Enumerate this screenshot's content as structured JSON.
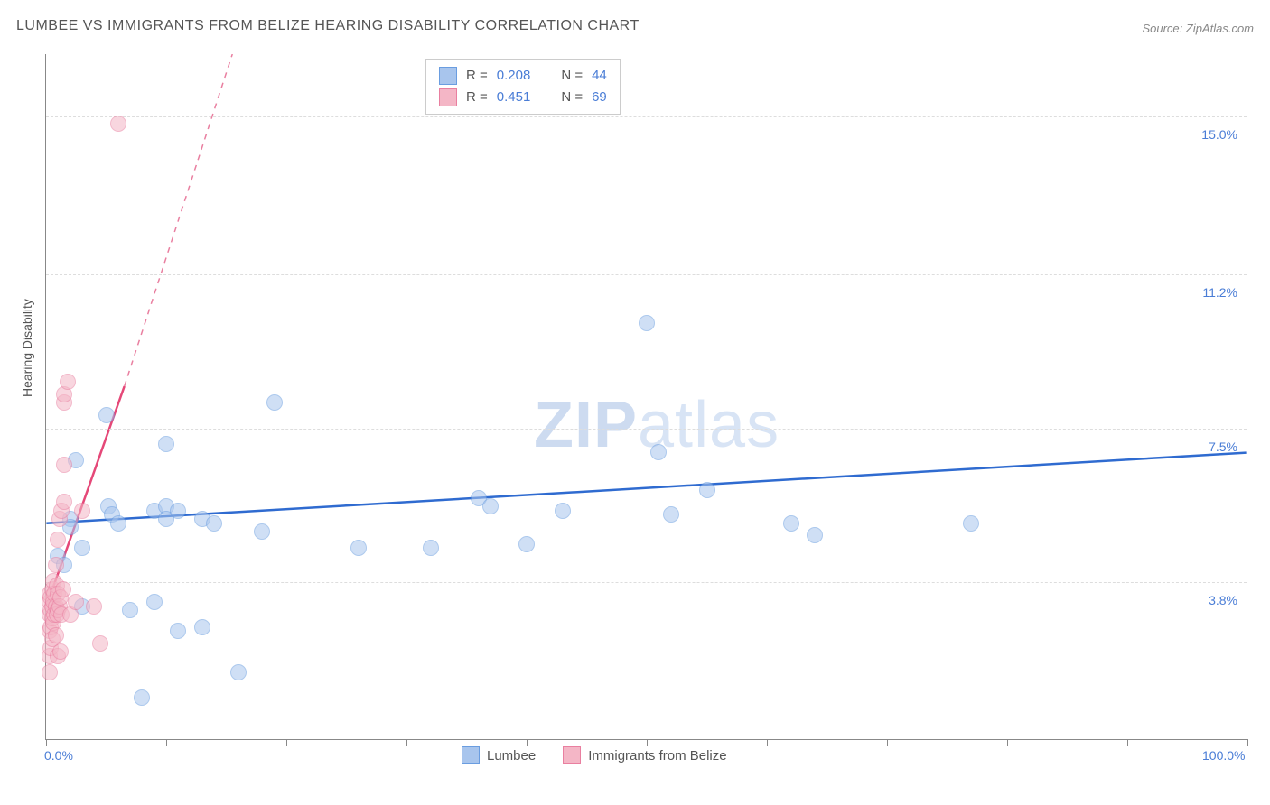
{
  "title": "LUMBEE VS IMMIGRANTS FROM BELIZE HEARING DISABILITY CORRELATION CHART",
  "source": "Source: ZipAtlas.com",
  "ylabel": "Hearing Disability",
  "watermark": {
    "bold": "ZIP",
    "light": "atlas"
  },
  "chart": {
    "type": "scatter",
    "xlim": [
      0,
      100
    ],
    "ylim": [
      0,
      16.5
    ],
    "x_ticks": [
      0,
      10,
      20,
      30,
      40,
      50,
      60,
      70,
      80,
      90,
      100
    ],
    "x_tick_labels": {
      "0": "0.0%",
      "100": "100.0%"
    },
    "y_gridlines": [
      3.8,
      7.5,
      11.2,
      15.0
    ],
    "y_tick_labels": [
      "3.8%",
      "7.5%",
      "11.2%",
      "15.0%"
    ],
    "background_color": "#ffffff",
    "grid_color": "#dddddd",
    "axis_color": "#888888"
  },
  "series": [
    {
      "key": "lumbee",
      "label": "Lumbee",
      "fill": "#a8c5ed",
      "fill_opacity": 0.55,
      "stroke": "#6a9de0",
      "point_radius": 9,
      "R": "0.208",
      "N": "44",
      "trend": {
        "x1": 0,
        "y1": 5.2,
        "x2": 100,
        "y2": 6.9,
        "color": "#2f6bd0",
        "width": 2.5,
        "dash": "none"
      },
      "points": [
        [
          1,
          4.4
        ],
        [
          1.5,
          4.2
        ],
        [
          2,
          5.3
        ],
        [
          2,
          5.1
        ],
        [
          2.5,
          6.7
        ],
        [
          3,
          4.6
        ],
        [
          3,
          3.2
        ],
        [
          5,
          7.8
        ],
        [
          5.2,
          5.6
        ],
        [
          5.5,
          5.4
        ],
        [
          6,
          5.2
        ],
        [
          7,
          3.1
        ],
        [
          8,
          1.0
        ],
        [
          9,
          5.5
        ],
        [
          9,
          3.3
        ],
        [
          10,
          7.1
        ],
        [
          10,
          5.6
        ],
        [
          10,
          5.3
        ],
        [
          11,
          5.5
        ],
        [
          11,
          2.6
        ],
        [
          13,
          2.7
        ],
        [
          13,
          5.3
        ],
        [
          14,
          5.2
        ],
        [
          16,
          1.6
        ],
        [
          18,
          5.0
        ],
        [
          19,
          8.1
        ],
        [
          26,
          4.6
        ],
        [
          32,
          4.6
        ],
        [
          36,
          5.8
        ],
        [
          37,
          5.6
        ],
        [
          40,
          4.7
        ],
        [
          43,
          5.5
        ],
        [
          50,
          10.0
        ],
        [
          51,
          6.9
        ],
        [
          52,
          5.4
        ],
        [
          55,
          6.0
        ],
        [
          62,
          5.2
        ],
        [
          64,
          4.9
        ],
        [
          77,
          5.2
        ]
      ]
    },
    {
      "key": "belize",
      "label": "Immigrants from Belize",
      "fill": "#f4b6c6",
      "fill_opacity": 0.55,
      "stroke": "#e97fa0",
      "point_radius": 9,
      "R": "0.451",
      "N": "69",
      "trend_solid": {
        "x1": 0,
        "y1": 3.2,
        "x2": 6.5,
        "y2": 8.5,
        "color": "#e54878",
        "width": 2.5
      },
      "trend_dash": {
        "x1": 6.5,
        "y1": 8.5,
        "x2": 15.5,
        "y2": 16.5,
        "color": "#e97fa0",
        "width": 1.5
      },
      "points": [
        [
          0.3,
          1.6
        ],
        [
          0.3,
          2.0
        ],
        [
          0.3,
          2.6
        ],
        [
          0.3,
          3.0
        ],
        [
          0.3,
          3.3
        ],
        [
          0.3,
          3.5
        ],
        [
          0.4,
          2.2
        ],
        [
          0.4,
          2.7
        ],
        [
          0.4,
          3.1
        ],
        [
          0.4,
          3.4
        ],
        [
          0.5,
          2.4
        ],
        [
          0.5,
          2.9
        ],
        [
          0.5,
          3.2
        ],
        [
          0.5,
          3.6
        ],
        [
          0.6,
          2.8
        ],
        [
          0.6,
          3.3
        ],
        [
          0.6,
          3.8
        ],
        [
          0.7,
          3.0
        ],
        [
          0.7,
          3.5
        ],
        [
          0.8,
          2.5
        ],
        [
          0.8,
          3.2
        ],
        [
          0.8,
          4.2
        ],
        [
          0.9,
          3.0
        ],
        [
          0.9,
          3.7
        ],
        [
          1.0,
          2.0
        ],
        [
          1.0,
          3.1
        ],
        [
          1.0,
          3.5
        ],
        [
          1.0,
          4.8
        ],
        [
          1.1,
          3.2
        ],
        [
          1.1,
          5.3
        ],
        [
          1.2,
          2.1
        ],
        [
          1.2,
          3.4
        ],
        [
          1.3,
          3.0
        ],
        [
          1.3,
          5.5
        ],
        [
          1.4,
          3.6
        ],
        [
          1.5,
          5.7
        ],
        [
          1.5,
          6.6
        ],
        [
          1.5,
          8.1
        ],
        [
          1.5,
          8.3
        ],
        [
          1.8,
          8.6
        ],
        [
          2.0,
          3.0
        ],
        [
          2.5,
          3.3
        ],
        [
          3.0,
          5.5
        ],
        [
          4.0,
          3.2
        ],
        [
          4.5,
          2.3
        ],
        [
          6.0,
          14.8
        ]
      ]
    }
  ],
  "legend_top": {
    "rows": [
      {
        "swatch_fill": "#a8c5ed",
        "swatch_border": "#6a9de0",
        "R_label": "R =",
        "R": "0.208",
        "N_label": "N =",
        "N": "44"
      },
      {
        "swatch_fill": "#f4b6c6",
        "swatch_border": "#e97fa0",
        "R_label": "R =",
        "R": "0.451",
        "N_label": "N =",
        "N": "69"
      }
    ]
  },
  "legend_bottom": [
    {
      "swatch_fill": "#a8c5ed",
      "swatch_border": "#6a9de0",
      "label": "Lumbee"
    },
    {
      "swatch_fill": "#f4b6c6",
      "swatch_border": "#e97fa0",
      "label": "Immigrants from Belize"
    }
  ]
}
